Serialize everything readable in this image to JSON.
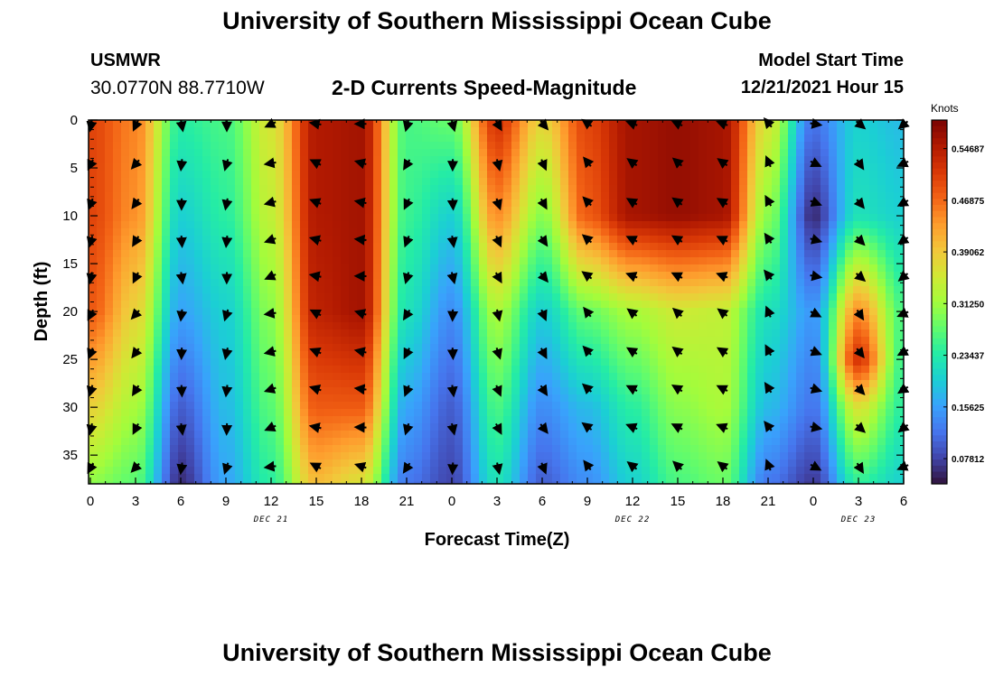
{
  "header": {
    "title": "University of Southern Mississippi Ocean Cube",
    "station_name": "USMWR",
    "station_coords": "30.0770N  88.7710W",
    "subtitle": "2-D Currents Speed-Magnitude",
    "model_start_label": "Model Start Time",
    "model_start_value": "12/21/2021 Hour 15"
  },
  "footer": {
    "title": "University of Southern Mississippi Ocean Cube"
  },
  "chart_data": {
    "type": "heatmap",
    "title": "2-D Currents Speed-Magnitude",
    "xlabel": "Forecast Time(Z)",
    "ylabel": "Depth (ft)",
    "x_tick_labels": [
      "0",
      "3",
      "6",
      "9",
      "12",
      "15",
      "18",
      "21",
      "0",
      "3",
      "6",
      "9",
      "12",
      "15",
      "18",
      "21",
      "0",
      "3",
      "6"
    ],
    "x_range_hours": [
      0,
      54
    ],
    "date_labels": [
      {
        "label": "DEC 21",
        "hour": 12
      },
      {
        "label": "DEC 22",
        "hour": 36
      },
      {
        "label": "DEC 23",
        "hour": 51
      }
    ],
    "y_tick_labels": [
      "0",
      "5",
      "10",
      "15",
      "20",
      "25",
      "30",
      "35"
    ],
    "ylim": [
      0,
      38
    ],
    "y_inverted": true,
    "colorbar": {
      "units": "Knots",
      "tick_labels": [
        "0.54687",
        "0.46875",
        "0.39062",
        "0.31250",
        "0.23437",
        "0.15625",
        "0.07812"
      ],
      "tick_values": [
        0.54687,
        0.46875,
        0.39062,
        0.3125,
        0.23437,
        0.15625,
        0.07812
      ],
      "range": [
        0.04,
        0.59
      ],
      "colors": [
        "#30123b",
        "#4145ab",
        "#4675ed",
        "#39a2fc",
        "#1bcfd4",
        "#24eca6",
        "#61fc6c",
        "#a4fc3b",
        "#d1e834",
        "#f3c63a",
        "#fe9b2d",
        "#f36315",
        "#d93806",
        "#b11901",
        "#7a0403"
      ]
    },
    "speed_keyframes": [
      {
        "hour": 0,
        "depths": [
          0,
          10,
          20,
          30,
          38
        ],
        "speeds": [
          0.5,
          0.5,
          0.48,
          0.38,
          0.3
        ]
      },
      {
        "hour": 3,
        "depths": [
          0,
          10,
          20,
          30,
          38
        ],
        "speeds": [
          0.45,
          0.44,
          0.38,
          0.32,
          0.27
        ]
      },
      {
        "hour": 6,
        "depths": [
          0,
          10,
          20,
          30,
          38
        ],
        "speeds": [
          0.24,
          0.2,
          0.16,
          0.1,
          0.06
        ]
      },
      {
        "hour": 9,
        "depths": [
          0,
          10,
          20,
          30,
          38
        ],
        "speeds": [
          0.26,
          0.24,
          0.2,
          0.18,
          0.16
        ]
      },
      {
        "hour": 12,
        "depths": [
          0,
          10,
          20,
          30,
          38
        ],
        "speeds": [
          0.36,
          0.34,
          0.3,
          0.27,
          0.24
        ]
      },
      {
        "hour": 15,
        "depths": [
          0,
          10,
          20,
          30,
          38
        ],
        "speeds": [
          0.55,
          0.55,
          0.54,
          0.48,
          0.4
        ]
      },
      {
        "hour": 18,
        "depths": [
          0,
          10,
          20,
          30,
          38
        ],
        "speeds": [
          0.56,
          0.56,
          0.56,
          0.48,
          0.36
        ]
      },
      {
        "hour": 21,
        "depths": [
          0,
          10,
          20,
          30,
          38
        ],
        "speeds": [
          0.26,
          0.25,
          0.22,
          0.16,
          0.12
        ]
      },
      {
        "hour": 24,
        "depths": [
          0,
          10,
          20,
          30,
          38
        ],
        "speeds": [
          0.28,
          0.2,
          0.14,
          0.1,
          0.08
        ]
      },
      {
        "hour": 27,
        "depths": [
          0,
          10,
          20,
          30,
          38
        ],
        "speeds": [
          0.52,
          0.44,
          0.32,
          0.26,
          0.22
        ]
      },
      {
        "hour": 30,
        "depths": [
          0,
          10,
          20,
          30,
          38
        ],
        "speeds": [
          0.38,
          0.3,
          0.2,
          0.14,
          0.1
        ]
      },
      {
        "hour": 33,
        "depths": [
          0,
          10,
          20,
          30,
          38
        ],
        "speeds": [
          0.5,
          0.48,
          0.28,
          0.18,
          0.14
        ]
      },
      {
        "hour": 36,
        "depths": [
          0,
          10,
          20,
          30,
          38
        ],
        "speeds": [
          0.56,
          0.56,
          0.32,
          0.24,
          0.2
        ]
      },
      {
        "hour": 39,
        "depths": [
          0,
          10,
          20,
          30,
          38
        ],
        "speeds": [
          0.57,
          0.57,
          0.35,
          0.3,
          0.26
        ]
      },
      {
        "hour": 42,
        "depths": [
          0,
          10,
          20,
          30,
          38
        ],
        "speeds": [
          0.56,
          0.56,
          0.34,
          0.32,
          0.28
        ]
      },
      {
        "hour": 45,
        "depths": [
          0,
          10,
          20,
          30,
          38
        ],
        "speeds": [
          0.36,
          0.3,
          0.22,
          0.18,
          0.12
        ]
      },
      {
        "hour": 48,
        "depths": [
          0,
          10,
          20,
          30,
          38
        ],
        "speeds": [
          0.12,
          0.06,
          0.15,
          0.12,
          0.07
        ]
      },
      {
        "hour": 51,
        "depths": [
          0,
          10,
          20,
          25,
          30,
          38
        ],
        "speeds": [
          0.2,
          0.22,
          0.44,
          0.52,
          0.36,
          0.24
        ]
      },
      {
        "hour": 54,
        "depths": [
          0,
          10,
          20,
          30,
          38
        ],
        "speeds": [
          0.18,
          0.2,
          0.26,
          0.24,
          0.2
        ]
      }
    ],
    "vector_depths_ft": [
      0.4,
      4.5,
      8.6,
      12.5,
      16.3,
      20.2,
      24.2,
      28.1,
      32.1,
      36.2
    ],
    "vector_hours": [
      0,
      3,
      6,
      9,
      12,
      15,
      18,
      21,
      24,
      27,
      30,
      33,
      36,
      39,
      42,
      45,
      48,
      51,
      54
    ],
    "vector_direction_deg_per_hour": [
      {
        "hour": 0,
        "deg": 200
      },
      {
        "hour": 3,
        "deg": 215
      },
      {
        "hour": 6,
        "deg": 180
      },
      {
        "hour": 9,
        "deg": 190
      },
      {
        "hour": 12,
        "deg": 255
      },
      {
        "hour": 15,
        "deg": 290
      },
      {
        "hour": 18,
        "deg": 280
      },
      {
        "hour": 21,
        "deg": 205
      },
      {
        "hour": 24,
        "deg": 175
      },
      {
        "hour": 27,
        "deg": 160
      },
      {
        "hour": 30,
        "deg": 150
      },
      {
        "hour": 33,
        "deg": 315
      },
      {
        "hour": 36,
        "deg": 300
      },
      {
        "hour": 39,
        "deg": 305
      },
      {
        "hour": 42,
        "deg": 300
      },
      {
        "hour": 45,
        "deg": 330
      },
      {
        "hour": 48,
        "deg": 110
      },
      {
        "hour": 51,
        "deg": 140
      },
      {
        "hour": 54,
        "deg": 240
      }
    ],
    "grid": false,
    "legend": "colorbar right"
  }
}
